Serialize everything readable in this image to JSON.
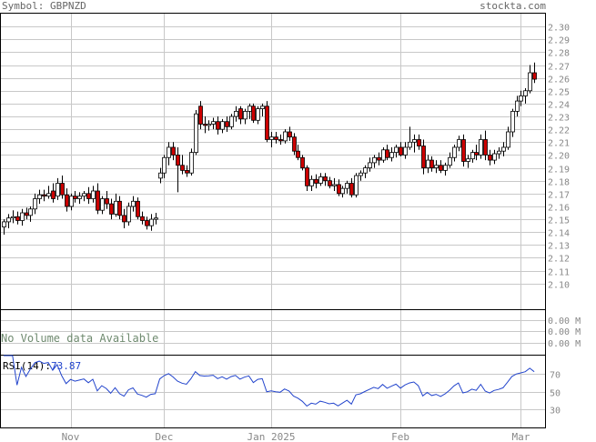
{
  "header": {
    "symbol_label": "Symbol:",
    "symbol": "GBPNZD",
    "site": "stockta.com"
  },
  "volume": {
    "message": "No Volume data Available",
    "ticks": [
      "0.00 M",
      "0.00 M",
      "0.00 M"
    ]
  },
  "rsi": {
    "label": "RSI(14):",
    "value": "73.87",
    "ticks": [
      70,
      50,
      30
    ],
    "range": [
      10,
      90
    ]
  },
  "colors": {
    "up_fill": "#ffffff",
    "down_fill": "#cc0000",
    "wick": "#000000",
    "rsi_line": "#2244cc",
    "rsi_value": "#2244cc",
    "grid": "#c8c8c8",
    "axis_text": "#888888",
    "volume_text": "#6f8a6f"
  },
  "chart_data": {
    "type": "candlestick",
    "title": "",
    "ylim": [
      2.08,
      2.31
    ],
    "yticks": [
      2.3,
      2.29,
      2.28,
      2.27,
      2.26,
      2.25,
      2.24,
      2.23,
      2.22,
      2.21,
      2.2,
      2.19,
      2.18,
      2.17,
      2.16,
      2.15,
      2.14,
      2.13,
      2.12,
      2.11,
      2.1
    ],
    "x_labels": [
      {
        "label": "Nov",
        "index": 15
      },
      {
        "label": "Dec",
        "index": 36
      },
      {
        "label": "Jan 2025",
        "index": 60
      },
      {
        "label": "Feb",
        "index": 89
      },
      {
        "label": "Mar",
        "index": 116
      }
    ],
    "candles": [
      [
        2.144,
        2.15,
        2.138,
        2.148
      ],
      [
        2.148,
        2.154,
        2.143,
        2.151
      ],
      [
        2.151,
        2.157,
        2.147,
        2.152
      ],
      [
        2.152,
        2.156,
        2.146,
        2.149
      ],
      [
        2.149,
        2.158,
        2.145,
        2.155
      ],
      [
        2.155,
        2.159,
        2.15,
        2.153
      ],
      [
        2.153,
        2.16,
        2.148,
        2.158
      ],
      [
        2.158,
        2.17,
        2.154,
        2.166
      ],
      [
        2.166,
        2.173,
        2.162,
        2.169
      ],
      [
        2.169,
        2.173,
        2.164,
        2.168
      ],
      [
        2.168,
        2.176,
        2.166,
        2.17
      ],
      [
        2.172,
        2.178,
        2.163,
        2.166
      ],
      [
        2.168,
        2.182,
        2.165,
        2.178
      ],
      [
        2.178,
        2.184,
        2.166,
        2.169
      ],
      [
        2.169,
        2.174,
        2.156,
        2.16
      ],
      [
        2.16,
        2.17,
        2.157,
        2.168
      ],
      [
        2.168,
        2.172,
        2.163,
        2.166
      ],
      [
        2.166,
        2.171,
        2.162,
        2.168
      ],
      [
        2.168,
        2.172,
        2.164,
        2.17
      ],
      [
        2.17,
        2.175,
        2.162,
        2.166
      ],
      [
        2.166,
        2.176,
        2.163,
        2.172
      ],
      [
        2.172,
        2.178,
        2.154,
        2.157
      ],
      [
        2.157,
        2.168,
        2.154,
        2.166
      ],
      [
        2.166,
        2.172,
        2.158,
        2.162
      ],
      [
        2.162,
        2.166,
        2.15,
        2.154
      ],
      [
        2.154,
        2.17,
        2.152,
        2.164
      ],
      [
        2.164,
        2.168,
        2.15,
        2.153
      ],
      [
        2.153,
        2.158,
        2.143,
        2.148
      ],
      [
        2.148,
        2.163,
        2.145,
        2.16
      ],
      [
        2.16,
        2.168,
        2.156,
        2.164
      ],
      [
        2.164,
        2.167,
        2.15,
        2.152
      ],
      [
        2.152,
        2.156,
        2.146,
        2.149
      ],
      [
        2.149,
        2.152,
        2.142,
        2.145
      ],
      [
        2.145,
        2.154,
        2.141,
        2.15
      ],
      [
        2.15,
        2.155,
        2.146,
        2.151
      ],
      [
        2.182,
        2.19,
        2.178,
        2.186
      ],
      [
        2.186,
        2.2,
        2.182,
        2.198
      ],
      [
        2.198,
        2.21,
        2.192,
        2.206
      ],
      [
        2.206,
        2.21,
        2.196,
        2.2
      ],
      [
        2.2,
        2.206,
        2.171,
        2.192
      ],
      [
        2.192,
        2.2,
        2.185,
        2.188
      ],
      [
        2.188,
        2.192,
        2.183,
        2.186
      ],
      [
        2.186,
        2.205,
        2.184,
        2.202
      ],
      [
        2.202,
        2.235,
        2.2,
        2.232
      ],
      [
        2.238,
        2.242,
        2.22,
        2.224
      ],
      [
        2.224,
        2.23,
        2.217,
        2.223
      ],
      [
        2.223,
        2.227,
        2.219,
        2.224
      ],
      [
        2.224,
        2.229,
        2.22,
        2.226
      ],
      [
        2.226,
        2.23,
        2.216,
        2.22
      ],
      [
        2.22,
        2.228,
        2.217,
        2.226
      ],
      [
        2.226,
        2.23,
        2.218,
        2.222
      ],
      [
        2.222,
        2.232,
        2.22,
        2.23
      ],
      [
        2.23,
        2.238,
        2.226,
        2.234
      ],
      [
        2.236,
        2.238,
        2.224,
        2.228
      ],
      [
        2.228,
        2.236,
        2.224,
        2.234
      ],
      [
        2.234,
        2.24,
        2.228,
        2.238
      ],
      [
        2.238,
        2.24,
        2.225,
        2.227
      ],
      [
        2.227,
        2.238,
        2.224,
        2.236
      ],
      [
        2.236,
        2.24,
        2.23,
        2.238
      ],
      [
        2.238,
        2.242,
        2.21,
        2.212
      ],
      [
        2.212,
        2.218,
        2.206,
        2.214
      ],
      [
        2.214,
        2.218,
        2.209,
        2.212
      ],
      [
        2.212,
        2.216,
        2.208,
        2.211
      ],
      [
        2.211,
        2.22,
        2.209,
        2.218
      ],
      [
        2.218,
        2.222,
        2.211,
        2.214
      ],
      [
        2.214,
        2.217,
        2.2,
        2.203
      ],
      [
        2.203,
        2.208,
        2.196,
        2.198
      ],
      [
        2.198,
        2.2,
        2.188,
        2.19
      ],
      [
        2.19,
        2.192,
        2.172,
        2.176
      ],
      [
        2.176,
        2.184,
        2.172,
        2.181
      ],
      [
        2.181,
        2.185,
        2.174,
        2.178
      ],
      [
        2.178,
        2.186,
        2.176,
        2.183
      ],
      [
        2.183,
        2.186,
        2.176,
        2.18
      ],
      [
        2.18,
        2.183,
        2.174,
        2.176
      ],
      [
        2.176,
        2.182,
        2.172,
        2.177
      ],
      [
        2.177,
        2.181,
        2.168,
        2.17
      ],
      [
        2.17,
        2.176,
        2.167,
        2.174
      ],
      [
        2.174,
        2.18,
        2.17,
        2.178
      ],
      [
        2.178,
        2.182,
        2.167,
        2.169
      ],
      [
        2.169,
        2.186,
        2.167,
        2.184
      ],
      [
        2.184,
        2.188,
        2.18,
        2.186
      ],
      [
        2.186,
        2.192,
        2.182,
        2.19
      ],
      [
        2.19,
        2.198,
        2.187,
        2.194
      ],
      [
        2.194,
        2.2,
        2.19,
        2.198
      ],
      [
        2.198,
        2.202,
        2.192,
        2.196
      ],
      [
        2.196,
        2.206,
        2.194,
        2.204
      ],
      [
        2.204,
        2.208,
        2.196,
        2.198
      ],
      [
        2.198,
        2.206,
        2.195,
        2.202
      ],
      [
        2.202,
        2.208,
        2.198,
        2.206
      ],
      [
        2.206,
        2.21,
        2.199,
        2.2
      ],
      [
        2.2,
        2.21,
        2.197,
        2.206
      ],
      [
        2.206,
        2.222,
        2.204,
        2.21
      ],
      [
        2.21,
        2.216,
        2.202,
        2.212
      ],
      [
        2.212,
        2.216,
        2.204,
        2.207
      ],
      [
        2.207,
        2.212,
        2.185,
        2.19
      ],
      [
        2.19,
        2.2,
        2.186,
        2.196
      ],
      [
        2.196,
        2.199,
        2.187,
        2.19
      ],
      [
        2.19,
        2.196,
        2.186,
        2.192
      ],
      [
        2.192,
        2.196,
        2.186,
        2.188
      ],
      [
        2.188,
        2.194,
        2.184,
        2.192
      ],
      [
        2.192,
        2.202,
        2.19,
        2.198
      ],
      [
        2.198,
        2.208,
        2.195,
        2.206
      ],
      [
        2.206,
        2.215,
        2.203,
        2.212
      ],
      [
        2.212,
        2.216,
        2.191,
        2.195
      ],
      [
        2.195,
        2.2,
        2.19,
        2.197
      ],
      [
        2.197,
        2.204,
        2.194,
        2.202
      ],
      [
        2.202,
        2.208,
        2.196,
        2.2
      ],
      [
        2.2,
        2.216,
        2.197,
        2.212
      ],
      [
        2.212,
        2.219,
        2.196,
        2.2
      ],
      [
        2.2,
        2.204,
        2.192,
        2.196
      ],
      [
        2.196,
        2.204,
        2.193,
        2.201
      ],
      [
        2.201,
        2.206,
        2.197,
        2.203
      ],
      [
        2.203,
        2.21,
        2.199,
        2.206
      ],
      [
        2.206,
        2.222,
        2.204,
        2.218
      ],
      [
        2.218,
        2.236,
        2.214,
        2.234
      ],
      [
        2.234,
        2.246,
        2.23,
        2.242
      ],
      [
        2.242,
        2.25,
        2.238,
        2.246
      ],
      [
        2.246,
        2.252,
        2.24,
        2.25
      ],
      [
        2.25,
        2.27,
        2.248,
        2.264
      ],
      [
        2.264,
        2.272,
        2.256,
        2.259
      ]
    ]
  }
}
